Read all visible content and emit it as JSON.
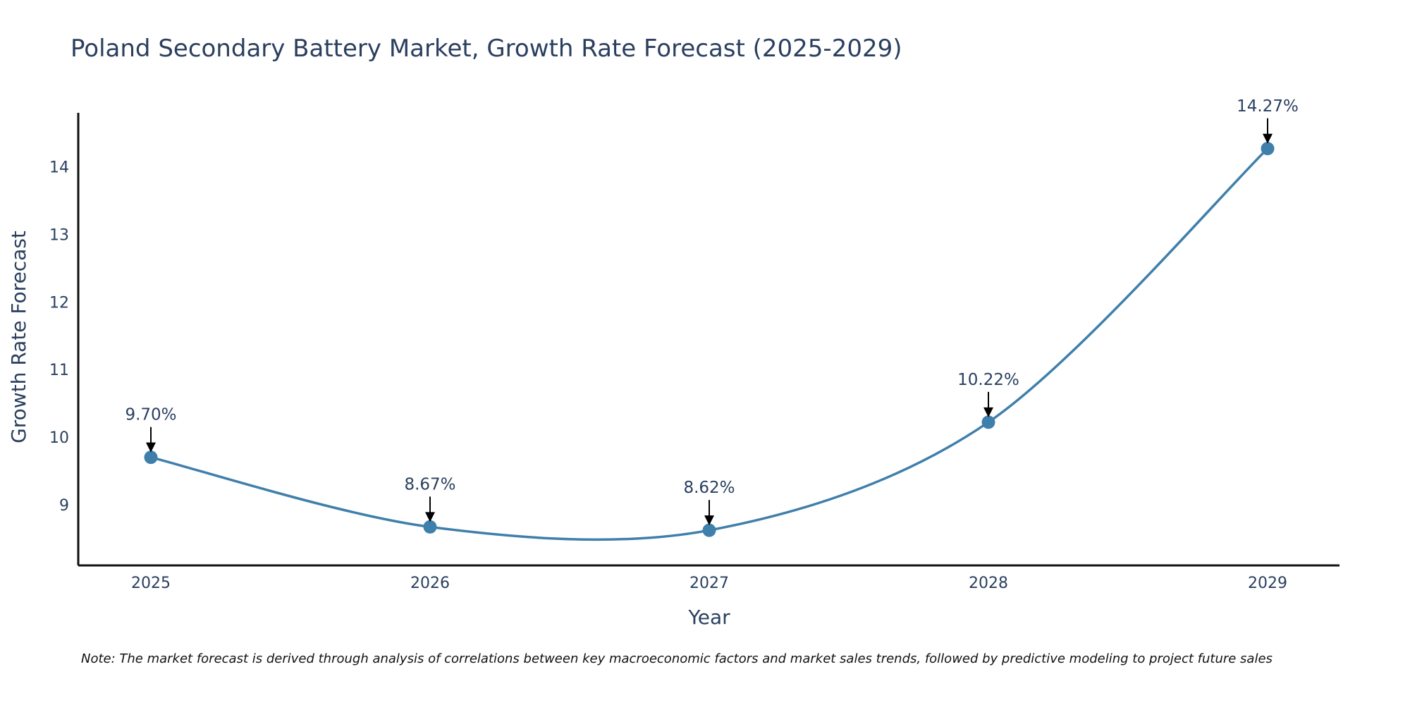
{
  "chart_data": {
    "type": "line",
    "title": "Poland Secondary Battery Market, Growth Rate Forecast (2025-2029)",
    "xlabel": "Year",
    "ylabel": "Growth Rate Forecast",
    "categories": [
      "2025",
      "2026",
      "2027",
      "2028",
      "2029"
    ],
    "series": [
      {
        "name": "Growth Rate Forecast",
        "values": [
          9.7,
          8.67,
          8.62,
          10.22,
          14.27
        ],
        "labels": [
          "9.70%",
          "8.67%",
          "8.62%",
          "10.22%",
          "14.27%"
        ],
        "color": "#3f7fab"
      }
    ],
    "yticks": [
      9,
      10,
      11,
      12,
      13,
      14
    ],
    "ylim": [
      8.1,
      14.8
    ],
    "grid": false,
    "note": "Note: The market forecast is derived through analysis of correlations between key macroeconomic factors and market sales trends, followed by predictive modeling to project future sales"
  }
}
